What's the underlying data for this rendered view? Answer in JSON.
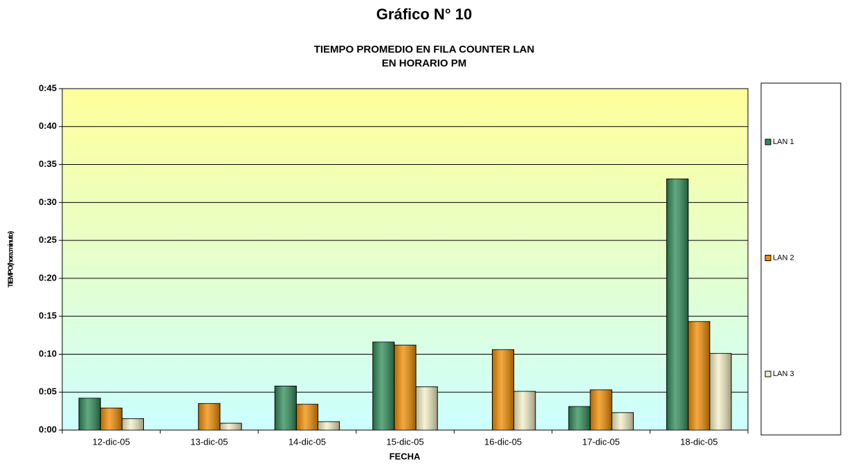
{
  "chart_data": {
    "type": "bar",
    "title": "Gráfico N° 10",
    "subtitle": [
      "TIEMPO PROMEDIO EN FILA COUNTER LAN",
      "EN HORARIO PM"
    ],
    "x_label": "FECHA",
    "y_label": "TIEMPO(hora:minuto)",
    "categories": [
      "12-dic-05",
      "13-dic-05",
      "14-dic-05",
      "15-dic-05",
      "16-dic-05",
      "17-dic-05",
      "18-dic-05"
    ],
    "series": [
      {
        "name": "LAN 1",
        "color": "#2e8b57",
        "values": [
          4.2,
          null,
          5.8,
          11.6,
          null,
          3.1,
          33.1
        ]
      },
      {
        "name": "LAN 2",
        "color": "#f08c00",
        "values": [
          2.9,
          3.5,
          3.4,
          11.2,
          10.6,
          5.3,
          14.3
        ]
      },
      {
        "name": "LAN 3",
        "color": "#f3eec4",
        "values": [
          1.5,
          0.9,
          1.1,
          5.7,
          5.1,
          2.3,
          10.1
        ]
      }
    ],
    "ylim": [
      0,
      45
    ],
    "yticks": [
      {
        "value": 0,
        "label": "0:00"
      },
      {
        "value": 5,
        "label": "0:05"
      },
      {
        "value": 10,
        "label": "0:10"
      },
      {
        "value": 15,
        "label": "0:15"
      },
      {
        "value": 20,
        "label": "0:20"
      },
      {
        "value": 25,
        "label": "0:25"
      },
      {
        "value": 30,
        "label": "0:30"
      },
      {
        "value": 35,
        "label": "0:35"
      },
      {
        "value": 40,
        "label": "0:40"
      },
      {
        "value": 45,
        "label": "0:45"
      }
    ],
    "grid": true,
    "legend": "right"
  }
}
